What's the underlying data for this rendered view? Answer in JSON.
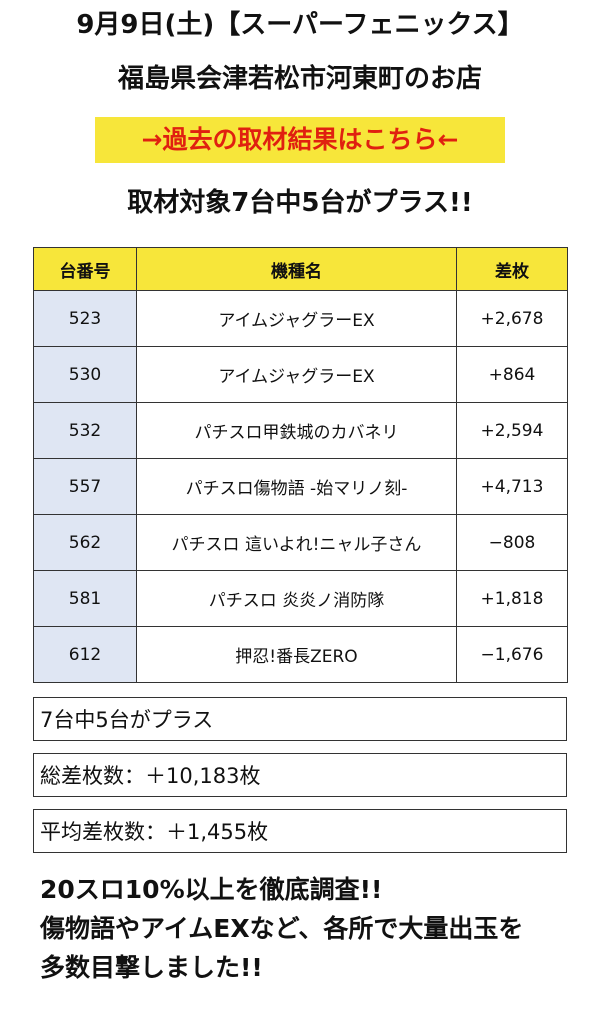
{
  "header": {
    "title_line1": "9月9日(土)【スーパーフェニックス】",
    "title_line2": "福島県会津若松市河東町のお店",
    "link_label": "→過去の取材結果はこちら←",
    "headline": "取材対象7台中5台がプラス!!"
  },
  "table": {
    "columns": [
      "台番号",
      "機種名",
      "差枚"
    ],
    "rows": [
      {
        "number": "523",
        "machine": "アイムジャグラーEX",
        "diff": "+2,678"
      },
      {
        "number": "530",
        "machine": "アイムジャグラーEX",
        "diff": "+864"
      },
      {
        "number": "532",
        "machine": "パチスロ甲鉄城のカバネリ",
        "diff": "+2,594"
      },
      {
        "number": "557",
        "machine": "パチスロ傷物語 -始マリノ刻-",
        "diff": "+4,713"
      },
      {
        "number": "562",
        "machine": "パチスロ 這いよれ!ニャル子さん",
        "diff": "−808"
      },
      {
        "number": "581",
        "machine": "パチスロ 炎炎ノ消防隊",
        "diff": "+1,818"
      },
      {
        "number": "612",
        "machine": "押忍!番長ZERO",
        "diff": "−1,676"
      }
    ]
  },
  "summary": {
    "plus_count": "7台中5台がプラス",
    "total_diff": "総差枚数：＋10,183枚",
    "avg_diff": "平均差枚数：＋1,455枚"
  },
  "comment": {
    "line1": "20スロ10%以上を徹底調査!!",
    "line2": "傷物語やアイムEXなど、各所で大量出玉を",
    "line3": "多数目撃しました!!"
  },
  "colors": {
    "highlight": "#f7e63a",
    "link_text": "#e02010",
    "number_cell": "#dfe6f3"
  }
}
